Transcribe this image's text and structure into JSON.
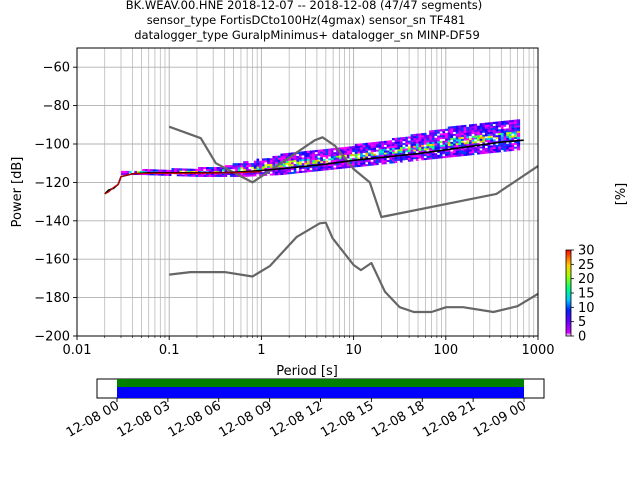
{
  "chart_data": {
    "type": "heatmap",
    "title_lines": [
      "BK.WEAV.00.HNE   2018-12-07 -- 2018-12-08  (47/47 segments)",
      "sensor_type FortisDCto100Hz(4gmax) sensor_sn TF481",
      "datalogger_type GuralpMinimus+ datalogger_sn MINP-DF59"
    ],
    "xlabel": "Period [s]",
    "ylabel": "Power [dB]",
    "xscale": "log",
    "xlim": [
      0.01,
      1000
    ],
    "ylim": [
      -200,
      -50
    ],
    "xticks": [
      {
        "value": 0.01,
        "label": "0.01"
      },
      {
        "value": 0.1,
        "label": "0.1"
      },
      {
        "value": 1,
        "label": "1"
      },
      {
        "value": 10,
        "label": "10"
      },
      {
        "value": 100,
        "label": "100"
      },
      {
        "value": 1000,
        "label": "1000"
      }
    ],
    "yticks": [
      {
        "value": -60,
        "label": "−60"
      },
      {
        "value": -80,
        "label": "−80"
      },
      {
        "value": -100,
        "label": "−100"
      },
      {
        "value": -120,
        "label": "−120"
      },
      {
        "value": -140,
        "label": "−140"
      },
      {
        "value": -160,
        "label": "−160"
      },
      {
        "value": -180,
        "label": "−180"
      },
      {
        "value": -200,
        "label": "−200"
      }
    ],
    "grid": true,
    "colorbar": {
      "label": "[%]",
      "range": [
        0,
        30
      ],
      "ticks": [
        {
          "value": 0,
          "label": "0"
        },
        {
          "value": 5,
          "label": "5"
        },
        {
          "value": 10,
          "label": "10"
        },
        {
          "value": 15,
          "label": "15"
        },
        {
          "value": 20,
          "label": "20"
        },
        {
          "value": 25,
          "label": "25"
        },
        {
          "value": 30,
          "label": "30"
        }
      ]
    },
    "series": [
      {
        "kind": "noise-model-high",
        "color": "#666666",
        "points": [
          [
            0.1,
            -91
          ],
          [
            0.22,
            -97
          ],
          [
            0.32,
            -110
          ],
          [
            0.8,
            -120
          ],
          [
            3.8,
            -98
          ],
          [
            4.6,
            -96.5
          ],
          [
            6.3,
            -101
          ],
          [
            10,
            -113
          ],
          [
            15,
            -120
          ],
          [
            20,
            -138
          ],
          [
            354,
            -126
          ],
          [
            1000,
            -111.5
          ]
        ]
      },
      {
        "kind": "noise-model-low",
        "color": "#666666",
        "points": [
          [
            0.1,
            -168
          ],
          [
            0.17,
            -166.7
          ],
          [
            0.4,
            -166.7
          ],
          [
            0.8,
            -169
          ],
          [
            1.24,
            -163.5
          ],
          [
            2.4,
            -148.5
          ],
          [
            4.3,
            -141.3
          ],
          [
            5,
            -141
          ],
          [
            5.9,
            -149
          ],
          [
            10,
            -163
          ],
          [
            12,
            -165.7
          ],
          [
            15.6,
            -162
          ],
          [
            21.9,
            -177
          ],
          [
            31.6,
            -185
          ],
          [
            45,
            -187.5
          ],
          [
            70,
            -187.5
          ],
          [
            101,
            -185
          ],
          [
            154,
            -185
          ],
          [
            328,
            -187.5
          ],
          [
            600,
            -184.5
          ],
          [
            1000,
            -178
          ]
        ]
      },
      {
        "kind": "mean-psd",
        "color": "#000000",
        "points": [
          [
            0.02,
            -126
          ],
          [
            0.022,
            -124
          ],
          [
            0.025,
            -123
          ],
          [
            0.028,
            -121
          ],
          [
            0.03,
            -117
          ],
          [
            0.04,
            -115.5
          ],
          [
            0.06,
            -115
          ],
          [
            0.1,
            -115
          ],
          [
            0.3,
            -115
          ],
          [
            0.5,
            -114.8
          ],
          [
            1,
            -113.8
          ],
          [
            2,
            -112.5
          ],
          [
            5,
            -110.5
          ],
          [
            10,
            -108.5
          ],
          [
            20,
            -107
          ],
          [
            50,
            -105
          ],
          [
            100,
            -103
          ],
          [
            200,
            -101
          ],
          [
            400,
            -99
          ],
          [
            700,
            -98
          ]
        ]
      },
      {
        "kind": "mode-psd",
        "color": "#cc0000",
        "points": [
          [
            0.02,
            -126
          ],
          [
            0.022,
            -125
          ],
          [
            0.025,
            -122.5
          ],
          [
            0.028,
            -121
          ],
          [
            0.03,
            -117
          ],
          [
            0.04,
            -115.5
          ],
          [
            0.07,
            -115.2
          ],
          [
            0.15,
            -115.3
          ],
          [
            0.5,
            -115
          ],
          [
            1,
            -114.5
          ]
        ]
      }
    ],
    "psd_density": [
      [
        0.03,
        -116,
        -114.5
      ],
      [
        0.05,
        -116,
        -114
      ],
      [
        0.1,
        -116.5,
        -113.5
      ],
      [
        0.2,
        -117,
        -113
      ],
      [
        0.35,
        -117,
        -112
      ],
      [
        0.6,
        -117,
        -110
      ],
      [
        1,
        -116.5,
        -108
      ],
      [
        1.6,
        -116,
        -106
      ],
      [
        2.5,
        -115,
        -104.5
      ],
      [
        4,
        -114,
        -103
      ],
      [
        6.3,
        -113,
        -102
      ],
      [
        10,
        -112,
        -101
      ],
      [
        16,
        -111,
        -99.5
      ],
      [
        25,
        -110,
        -98
      ],
      [
        40,
        -109,
        -96
      ],
      [
        63,
        -108,
        -94
      ],
      [
        100,
        -107,
        -92
      ],
      [
        160,
        -106,
        -90.5
      ],
      [
        250,
        -105,
        -89
      ],
      [
        400,
        -104,
        -88.5
      ],
      [
        630,
        -103,
        -88
      ]
    ]
  },
  "time_axis": {
    "ticks": [
      "12-08 00",
      "12-08 03",
      "12-08 06",
      "12-08 09",
      "12-08 12",
      "12-08 15",
      "12-08 18",
      "12-08 21",
      "12-09 00"
    ],
    "coverage_colors": [
      "#008000",
      "#0000ff"
    ],
    "coverage_fraction": [
      0.042,
      0.958
    ]
  }
}
